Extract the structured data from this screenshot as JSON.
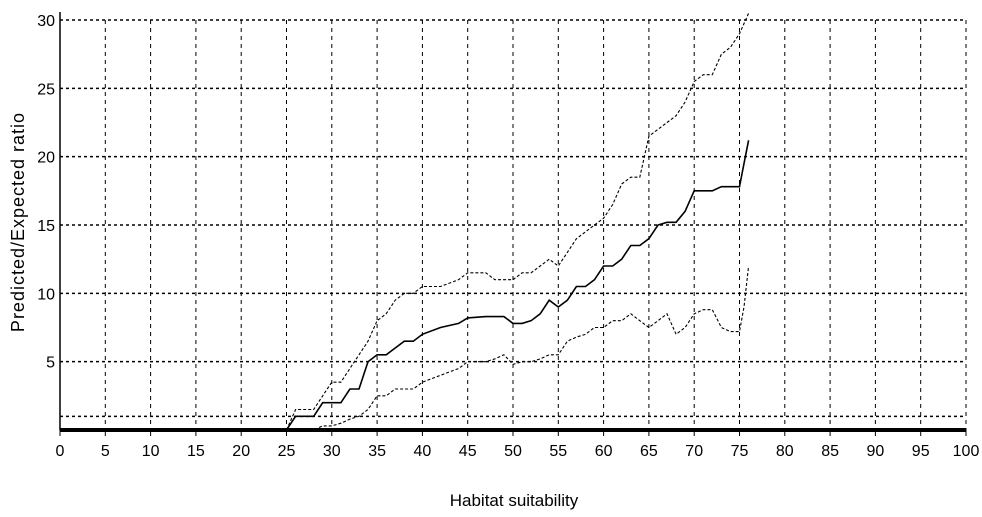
{
  "chart_data": {
    "type": "line",
    "title": "",
    "xlabel": "Habitat suitability",
    "ylabel": "Predicted/Expected ratio",
    "xlim": [
      0,
      100
    ],
    "ylim": [
      0,
      30
    ],
    "xticks": [
      "0",
      "5",
      "10",
      "15",
      "20",
      "25",
      "30",
      "35",
      "40",
      "45",
      "50",
      "55",
      "60",
      "65",
      "70",
      "75",
      "80",
      "85",
      "90",
      "95",
      "100"
    ],
    "yticks": [
      "5",
      "10",
      "15",
      "20",
      "25",
      "30"
    ],
    "grid": true,
    "legend": "none",
    "reference_line_y": 1,
    "series": [
      {
        "style": "solid",
        "x": [
          0,
          25,
          26,
          28,
          29,
          30,
          31,
          32,
          33,
          34,
          35,
          36,
          37,
          38,
          39,
          40,
          42,
          44,
          45,
          47,
          48,
          49,
          50,
          51,
          52,
          53,
          54,
          55,
          56,
          57,
          58,
          59,
          60,
          61,
          62,
          63,
          64,
          65,
          66,
          67,
          68,
          69,
          70,
          71,
          72,
          73,
          74,
          75,
          75.5,
          76
        ],
        "y": [
          0,
          0,
          1.0,
          1.0,
          2.0,
          2.0,
          2.0,
          3.0,
          3.0,
          5.0,
          5.5,
          5.5,
          6.0,
          6.5,
          6.5,
          7.0,
          7.5,
          7.8,
          8.2,
          8.3,
          8.3,
          8.3,
          7.8,
          7.8,
          8.0,
          8.5,
          9.5,
          9.0,
          9.5,
          10.5,
          10.5,
          11.0,
          12.0,
          12.0,
          12.5,
          13.5,
          13.5,
          14.0,
          15.0,
          15.2,
          15.2,
          16.0,
          17.5,
          17.5,
          17.5,
          17.8,
          17.8,
          17.8,
          19.5,
          21.2
        ]
      },
      {
        "style": "dashed",
        "x": [
          25,
          26,
          28,
          29,
          30,
          31,
          32,
          33,
          34,
          35,
          36,
          37,
          38,
          39,
          40,
          42,
          44,
          45,
          47,
          48,
          50,
          51,
          52,
          53,
          54,
          55,
          56,
          57,
          58,
          59,
          60,
          61,
          62,
          63,
          64,
          65,
          66,
          67,
          68,
          69,
          70,
          71,
          72,
          73,
          74,
          75,
          76
        ],
        "y": [
          0,
          1.5,
          1.5,
          2.5,
          3.5,
          3.5,
          4.5,
          5.5,
          6.5,
          8.0,
          8.5,
          9.5,
          10.0,
          10.0,
          10.5,
          10.5,
          11.0,
          11.5,
          11.5,
          11.0,
          11.0,
          11.5,
          11.5,
          12.0,
          12.5,
          12.0,
          13.0,
          14.0,
          14.5,
          15.0,
          15.5,
          16.5,
          18.0,
          18.5,
          18.5,
          21.5,
          22.0,
          22.5,
          23.0,
          24.0,
          25.5,
          26.0,
          26.0,
          27.5,
          28.0,
          29.0,
          30.5
        ]
      },
      {
        "style": "dashed",
        "x": [
          27,
          28,
          29,
          30,
          31,
          32,
          33,
          34,
          35,
          36,
          37,
          38,
          39,
          40,
          42,
          44,
          45,
          47,
          48,
          49,
          50,
          51,
          52,
          53,
          54,
          55,
          56,
          57,
          58,
          59,
          60,
          61,
          62,
          63,
          64,
          65,
          66,
          67,
          68,
          69,
          70,
          71,
          72,
          73,
          74,
          75,
          75.5,
          76
        ],
        "y": [
          0,
          0,
          0.3,
          0.3,
          0.5,
          0.8,
          1.0,
          1.5,
          2.5,
          2.5,
          3.0,
          3.0,
          3.0,
          3.5,
          4.0,
          4.5,
          5.0,
          5.0,
          5.2,
          5.5,
          4.8,
          5.0,
          5.0,
          5.2,
          5.5,
          5.5,
          6.5,
          6.8,
          7.0,
          7.5,
          7.5,
          8.0,
          8.0,
          8.5,
          8.0,
          7.5,
          8.0,
          8.5,
          7.0,
          7.5,
          8.5,
          8.8,
          8.8,
          7.5,
          7.2,
          7.2,
          9.0,
          12.0
        ]
      }
    ]
  }
}
